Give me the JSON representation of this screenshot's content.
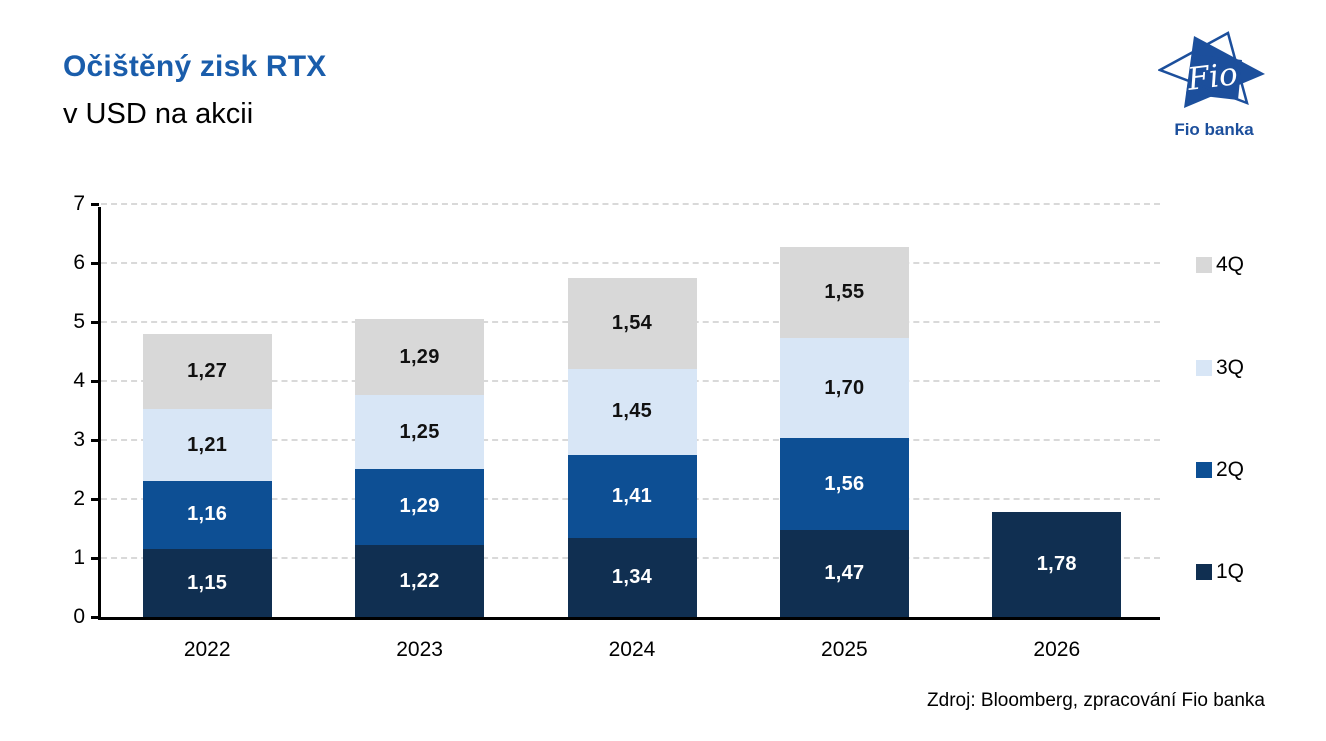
{
  "header": {
    "title": "Očištěný zisk RTX",
    "subtitle": "v USD na akcii"
  },
  "logo": {
    "text": "Fio",
    "caption": "Fio banka"
  },
  "footer": {
    "source": "Zdroj: Bloomberg, zpracování Fio banka"
  },
  "colors": {
    "title": "#1a5dab",
    "logo": "#1c4f9c",
    "grid": "#d9d9d9",
    "axis": "#000000",
    "q1": "#102f51",
    "q2": "#0d4f94",
    "q3": "#d8e6f6",
    "q4": "#d8d8d8"
  },
  "chart_data": {
    "type": "bar",
    "stacked": true,
    "title": "Očištěný zisk RTX",
    "subtitle": "v USD na akcii",
    "categories": [
      "2022",
      "2023",
      "2024",
      "2025",
      "2026"
    ],
    "series": [
      {
        "name": "1Q",
        "color": "#102f51",
        "label_color": "#ffffff",
        "values": [
          1.15,
          1.22,
          1.34,
          1.47,
          1.78
        ],
        "labels": [
          "1,15",
          "1,22",
          "1,34",
          "1,47",
          "1,78"
        ]
      },
      {
        "name": "2Q",
        "color": "#0d4f94",
        "label_color": "#ffffff",
        "values": [
          1.16,
          1.29,
          1.41,
          1.56,
          null
        ],
        "labels": [
          "1,16",
          "1,29",
          "1,41",
          "1,56",
          ""
        ]
      },
      {
        "name": "3Q",
        "color": "#d8e6f6",
        "label_color": "#111111",
        "values": [
          1.21,
          1.25,
          1.45,
          1.7,
          null
        ],
        "labels": [
          "1,21",
          "1,25",
          "1,45",
          "1,70",
          ""
        ]
      },
      {
        "name": "4Q",
        "color": "#d8d8d8",
        "label_color": "#111111",
        "values": [
          1.27,
          1.29,
          1.54,
          1.55,
          null
        ],
        "labels": [
          "1,27",
          "1,29",
          "1,54",
          "1,55",
          ""
        ]
      }
    ],
    "ylim": [
      0,
      7
    ],
    "yticks": [
      0,
      1,
      2,
      3,
      4,
      5,
      6,
      7
    ],
    "grid": "horizontal-dashed",
    "legend_position": "right",
    "legend_order": [
      "4Q",
      "3Q",
      "2Q",
      "1Q"
    ]
  }
}
